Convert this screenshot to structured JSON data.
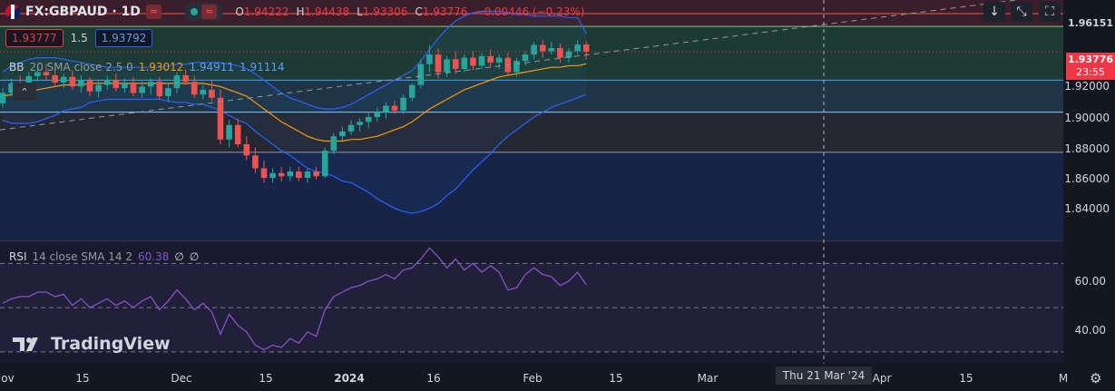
{
  "header": {
    "symbol": "FX:GBPAUD · 1D",
    "wave_icon": "≈",
    "ohlc": {
      "open_label": "O",
      "open": "1.94222",
      "high_label": "H",
      "high": "1.94438",
      "low_label": "L",
      "low": "1.93306",
      "close_label": "C",
      "close": "1.93776",
      "change": "−0.00446 (−0.23%)"
    }
  },
  "trade": {
    "sell": "1.93777",
    "spread": "1.5",
    "buy": "1.93792"
  },
  "bb_legend": {
    "name": "BB",
    "params": "20 SMA close 2.5 0",
    "basis": "1.93012",
    "upper": "1.94911",
    "lower": "1.91114"
  },
  "rsi_legend": {
    "name": "RSI",
    "params": "14 close SMA 14 2",
    "value": "60.38",
    "v2": "∅",
    "v3": "∅"
  },
  "toolbar": {
    "down_icon": "↓",
    "collapse_icon": "⤡",
    "fullscreen_icon": "⛶"
  },
  "price_axis": {
    "labels": [
      "1.92000",
      "1.90000",
      "1.88000",
      "1.86000",
      "1.84000"
    ],
    "top_label": "1.96151",
    "current_price": "1.93776",
    "countdown": "23:55",
    "rsi_labels": [
      "60.00",
      "40.00"
    ]
  },
  "time_axis": {
    "labels": [
      "Nov",
      "15",
      "Dec",
      "15",
      "2024",
      "16",
      "Feb",
      "15",
      "Mar",
      "Apr",
      "15",
      "M"
    ],
    "crosshair_label": "Thu 21 Mar '24"
  },
  "logo": "TradingView",
  "colors": {
    "up": "#26a69a",
    "down": "#ef5350",
    "bb_band": "#2962ff",
    "bb_basis": "#ff9800",
    "rsi": "#7e57c2"
  },
  "chart_data": {
    "type": "candlestick",
    "symbol": "GBPAUD",
    "interval": "1D",
    "ohlc": [
      [
        1.9055,
        1.915,
        1.903,
        1.912
      ],
      [
        1.912,
        1.921,
        1.91,
        1.918
      ],
      [
        1.918,
        1.923,
        1.912,
        1.914
      ],
      [
        1.914,
        1.925,
        1.913,
        1.9225
      ],
      [
        1.9225,
        1.929,
        1.919,
        1.925
      ],
      [
        1.925,
        1.93,
        1.92,
        1.923
      ],
      [
        1.923,
        1.927,
        1.916,
        1.9185
      ],
      [
        1.9185,
        1.924,
        1.915,
        1.922
      ],
      [
        1.922,
        1.926,
        1.914,
        1.916
      ],
      [
        1.916,
        1.923,
        1.912,
        1.92
      ],
      [
        1.92,
        1.922,
        1.91,
        1.913
      ],
      [
        1.913,
        1.92,
        1.909,
        1.917
      ],
      [
        1.917,
        1.923,
        1.914,
        1.92
      ],
      [
        1.92,
        1.924,
        1.913,
        1.915
      ],
      [
        1.915,
        1.921,
        1.912,
        1.918
      ],
      [
        1.918,
        1.922,
        1.91,
        1.912
      ],
      [
        1.912,
        1.919,
        1.909,
        1.916
      ],
      [
        1.916,
        1.921,
        1.911,
        1.919
      ],
      [
        1.919,
        1.922,
        1.908,
        1.91
      ],
      [
        1.91,
        1.918,
        1.906,
        1.915
      ],
      [
        1.915,
        1.925,
        1.912,
        1.923
      ],
      [
        1.923,
        1.927,
        1.917,
        1.919
      ],
      [
        1.919,
        1.923,
        1.909,
        1.911
      ],
      [
        1.911,
        1.917,
        1.908,
        1.914
      ],
      [
        1.914,
        1.92,
        1.907,
        1.909
      ],
      [
        1.909,
        1.914,
        1.88,
        1.883
      ],
      [
        1.883,
        1.895,
        1.878,
        1.892
      ],
      [
        1.892,
        1.896,
        1.878,
        1.88
      ],
      [
        1.88,
        1.885,
        1.87,
        1.873
      ],
      [
        1.873,
        1.878,
        1.862,
        1.865
      ],
      [
        1.865,
        1.87,
        1.856,
        1.859
      ],
      [
        1.859,
        1.865,
        1.856,
        1.862
      ],
      [
        1.862,
        1.866,
        1.857,
        1.86
      ],
      [
        1.86,
        1.866,
        1.857,
        1.863
      ],
      [
        1.863,
        1.866,
        1.857,
        1.859
      ],
      [
        1.859,
        1.865,
        1.856,
        1.863
      ],
      [
        1.863,
        1.866,
        1.858,
        1.86
      ],
      [
        1.86,
        1.878,
        1.859,
        1.876
      ],
      [
        1.876,
        1.887,
        1.874,
        1.885
      ],
      [
        1.885,
        1.891,
        1.882,
        1.888
      ],
      [
        1.888,
        1.895,
        1.886,
        1.892
      ],
      [
        1.892,
        1.896,
        1.888,
        1.894
      ],
      [
        1.894,
        1.9,
        1.89,
        1.897
      ],
      [
        1.897,
        1.903,
        1.894,
        1.9
      ],
      [
        1.9,
        1.906,
        1.896,
        1.904
      ],
      [
        1.904,
        1.907,
        1.899,
        1.901
      ],
      [
        1.901,
        1.911,
        1.899,
        1.909
      ],
      [
        1.909,
        1.918,
        1.907,
        1.917
      ],
      [
        1.917,
        1.933,
        1.915,
        1.93
      ],
      [
        1.93,
        1.942,
        1.925,
        1.936
      ],
      [
        1.936,
        1.94,
        1.921,
        1.925
      ],
      [
        1.925,
        1.935,
        1.922,
        1.933
      ],
      [
        1.933,
        1.938,
        1.924,
        1.927
      ],
      [
        1.927,
        1.936,
        1.925,
        1.934
      ],
      [
        1.934,
        1.938,
        1.926,
        1.929
      ],
      [
        1.929,
        1.937,
        1.927,
        1.935
      ],
      [
        1.935,
        1.939,
        1.928,
        1.931
      ],
      [
        1.931,
        1.936,
        1.927,
        1.934
      ],
      [
        1.934,
        1.937,
        1.923,
        1.925
      ],
      [
        1.925,
        1.934,
        1.922,
        1.932
      ],
      [
        1.932,
        1.938,
        1.929,
        1.936
      ],
      [
        1.936,
        1.944,
        1.933,
        1.942
      ],
      [
        1.942,
        1.945,
        1.934,
        1.938
      ],
      [
        1.938,
        1.944,
        1.936,
        1.94
      ],
      [
        1.94,
        1.943,
        1.931,
        1.934
      ],
      [
        1.934,
        1.94,
        1.931,
        1.938
      ],
      [
        1.938,
        1.945,
        1.936,
        1.9422
      ],
      [
        1.9422,
        1.9444,
        1.9331,
        1.9378
      ]
    ],
    "bb_upper": [
      1.925,
      1.929,
      1.931,
      1.933,
      1.934,
      1.934,
      1.934,
      1.933,
      1.932,
      1.931,
      1.93,
      1.929,
      1.928,
      1.928,
      1.928,
      1.928,
      1.928,
      1.928,
      1.928,
      1.929,
      1.93,
      1.93,
      1.931,
      1.931,
      1.931,
      1.931,
      1.93,
      1.929,
      1.927,
      1.924,
      1.92,
      1.916,
      1.912,
      1.909,
      1.907,
      1.905,
      1.903,
      1.902,
      1.902,
      1.903,
      1.905,
      1.908,
      1.911,
      1.914,
      1.917,
      1.92,
      1.923,
      1.926,
      1.932,
      1.939,
      1.946,
      1.952,
      1.957,
      1.96,
      1.962,
      1.963,
      1.963,
      1.963,
      1.962,
      1.961,
      1.961,
      1.96,
      1.96,
      1.96,
      1.96,
      1.959,
      1.959,
      1.9491
    ],
    "bb_basis": [
      1.91,
      1.911,
      1.912,
      1.913,
      1.914,
      1.915,
      1.916,
      1.917,
      1.917,
      1.917,
      1.918,
      1.918,
      1.918,
      1.918,
      1.918,
      1.918,
      1.918,
      1.918,
      1.918,
      1.918,
      1.918,
      1.918,
      1.918,
      1.918,
      1.917,
      1.916,
      1.914,
      1.912,
      1.91,
      1.906,
      1.902,
      1.898,
      1.894,
      1.891,
      1.888,
      1.885,
      1.883,
      1.882,
      1.882,
      1.882,
      1.883,
      1.883,
      1.884,
      1.885,
      1.887,
      1.889,
      1.891,
      1.894,
      1.898,
      1.902,
      1.905,
      1.908,
      1.911,
      1.914,
      1.916,
      1.918,
      1.92,
      1.922,
      1.923,
      1.924,
      1.925,
      1.926,
      1.927,
      1.928,
      1.928,
      1.929,
      1.929,
      1.93012
    ],
    "bb_lower": [
      1.895,
      1.893,
      1.893,
      1.893,
      1.894,
      1.896,
      1.898,
      1.901,
      1.902,
      1.903,
      1.906,
      1.907,
      1.908,
      1.908,
      1.908,
      1.908,
      1.908,
      1.908,
      1.908,
      1.907,
      1.906,
      1.906,
      1.905,
      1.905,
      1.903,
      1.901,
      1.898,
      1.895,
      1.893,
      1.888,
      1.884,
      1.88,
      1.876,
      1.873,
      1.869,
      1.865,
      1.863,
      1.862,
      1.86,
      1.857,
      1.856,
      1.853,
      1.85,
      1.846,
      1.843,
      1.84,
      1.838,
      1.837,
      1.838,
      1.84,
      1.843,
      1.848,
      1.852,
      1.858,
      1.864,
      1.869,
      1.874,
      1.88,
      1.885,
      1.889,
      1.893,
      1.897,
      1.9,
      1.903,
      1.905,
      1.907,
      1.909,
      1.91114
    ],
    "rsi": [
      52,
      54,
      55,
      55,
      57,
      57,
      55,
      56,
      51,
      54,
      50,
      52,
      54,
      51,
      53,
      50,
      53,
      55,
      49,
      53,
      58,
      54,
      49,
      52,
      48,
      38,
      47,
      42,
      39,
      33,
      31,
      33,
      32,
      36,
      34,
      39,
      37,
      49,
      55,
      57,
      59,
      60,
      62,
      63,
      65,
      63,
      67,
      68,
      72,
      77,
      73,
      68,
      72,
      67,
      70,
      66,
      69,
      66,
      58,
      59,
      65,
      68,
      65,
      64,
      60,
      62,
      66,
      60.38
    ],
    "price_ylim": [
      1.82,
      1.97
    ],
    "rsi_ylim": [
      25,
      80
    ],
    "horizontal_levels": [
      1.9535,
      1.92,
      1.9,
      1.875
    ],
    "rsi_levels": [
      70,
      50,
      30
    ],
    "x_dates": [
      "Nov 15",
      "Dec",
      "Dec 15",
      "2024",
      "Jan 16",
      "Feb",
      "Feb 15",
      "Mar",
      "Mar 21 '24",
      "Apr",
      "Apr 15"
    ]
  }
}
